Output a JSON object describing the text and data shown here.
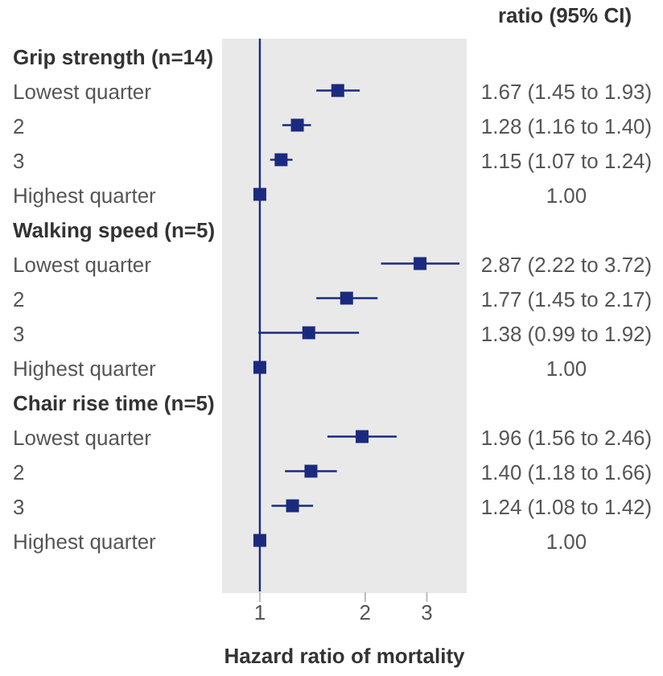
{
  "chart_data": {
    "type": "scatter",
    "orientation": "horizontal",
    "title": null,
    "categories": [
      "Grip strength (n=14)",
      "Lowest quarter",
      "2",
      "3",
      "Highest quarter",
      "Walking speed (n=5)",
      "Lowest quarter",
      "2",
      "3",
      "Highest quarter",
      "Chair rise time (n=5)",
      "Lowest quarter",
      "2",
      "3",
      "Highest quarter"
    ],
    "values": [
      null,
      1.67,
      1.28,
      1.15,
      1.0,
      null,
      2.87,
      1.77,
      1.38,
      1.0,
      null,
      1.96,
      1.4,
      1.24,
      1.0
    ],
    "errors": [
      null,
      [
        1.45,
        1.93
      ],
      [
        1.16,
        1.4
      ],
      [
        1.07,
        1.24
      ],
      null,
      null,
      [
        2.22,
        3.72
      ],
      [
        1.45,
        2.17
      ],
      [
        0.99,
        1.92
      ],
      null,
      null,
      [
        1.56,
        2.46
      ],
      [
        1.18,
        1.66
      ],
      [
        1.08,
        1.42
      ],
      null
    ],
    "color": "#1b2a7e",
    "marker": "square",
    "xlim": [
      0.78,
      3.9
    ],
    "xticks": [
      1,
      2,
      3
    ],
    "log": "x",
    "xlabel": "Hazard ratio of mortality",
    "ref_lines": [
      {
        "axis": "x",
        "value": 1,
        "color": "#1b2a7e"
      }
    ],
    "annotations": [
      "ratio (95% CI)",
      "1.67 (1.45 to 1.93)",
      "1.28 (1.16 to 1.40)",
      "1.15 (1.07 to 1.24)",
      "1.00",
      "2.87 (2.22 to 3.72)",
      "1.77 (1.45 to 2.17)",
      "1.38 (0.99 to 1.92)",
      "1.00",
      "1.96 (1.56 to 2.46)",
      "1.40 (1.18 to 1.66)",
      "1.24 (1.08 to 1.42)",
      "1.00"
    ]
  }
}
